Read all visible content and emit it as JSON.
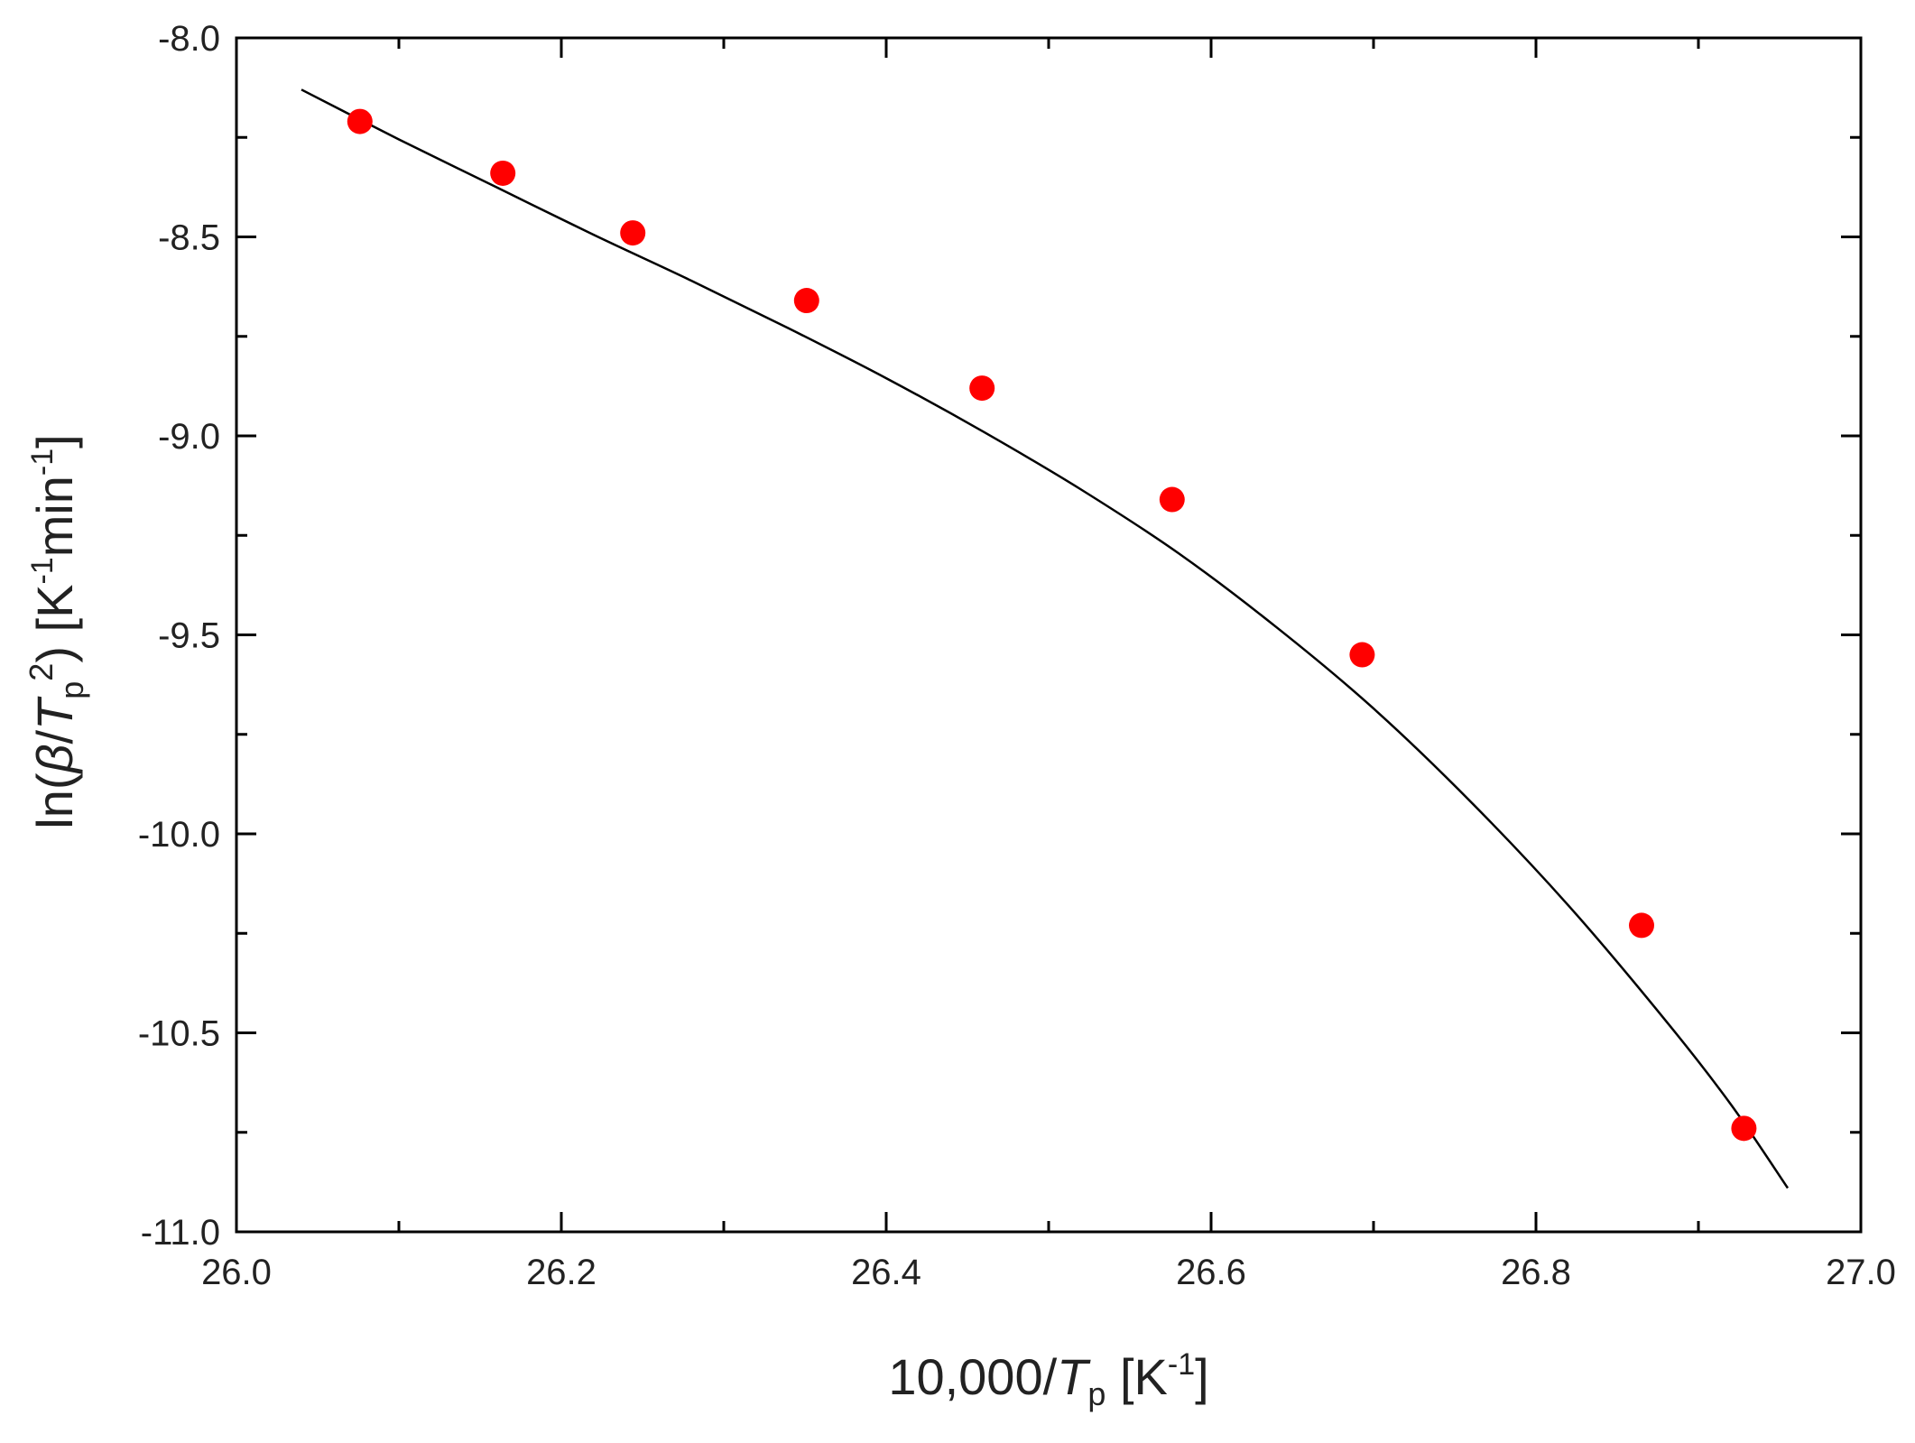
{
  "chart_data": {
    "type": "scatter",
    "xlabel": {
      "prefix": "10,000/",
      "var": "T",
      "sub": "p",
      "unit_open": " [K",
      "unit_sup": "-1",
      "unit_close": "]"
    },
    "ylabel": {
      "prefix": "ln(",
      "beta": "β",
      "slash": "/",
      "var": "T",
      "sub": "p",
      "sup": "2",
      "mid": ") [K",
      "sup2": "-1",
      "min": "min",
      "sup3": "-1",
      "close": "]"
    },
    "xlim": [
      26.0,
      27.0
    ],
    "ylim": [
      -11.0,
      -8.0
    ],
    "x_ticks": [
      26.0,
      26.2,
      26.4,
      26.6,
      26.8,
      27.0
    ],
    "x_tick_labels": [
      "26.0",
      "26.2",
      "26.4",
      "26.6",
      "26.8",
      "27.0"
    ],
    "y_ticks": [
      -8.0,
      -8.5,
      -9.0,
      -9.5,
      -10.0,
      -10.5,
      -11.0
    ],
    "y_tick_labels": [
      "-8.0",
      "-8.5",
      "-9.0",
      "-9.5",
      "-10.0",
      "-10.5",
      "-11.0"
    ],
    "grid": false,
    "marker_color": "#ff0000",
    "line_color": "#000000",
    "points": [
      {
        "x": 26.076,
        "y": -8.21
      },
      {
        "x": 26.164,
        "y": -8.34
      },
      {
        "x": 26.244,
        "y": -8.49
      },
      {
        "x": 26.351,
        "y": -8.66
      },
      {
        "x": 26.459,
        "y": -8.88
      },
      {
        "x": 26.576,
        "y": -9.16
      },
      {
        "x": 26.693,
        "y": -9.55
      },
      {
        "x": 26.865,
        "y": -10.23
      },
      {
        "x": 26.928,
        "y": -10.74
      }
    ],
    "fit_curve": {
      "x": [
        26.04,
        26.1,
        26.16,
        26.22,
        26.28,
        26.34,
        26.4,
        26.46,
        26.52,
        26.58,
        26.64,
        26.7,
        26.76,
        26.82,
        26.88,
        26.92,
        26.955
      ],
      "y": [
        -8.13,
        -8.255,
        -8.375,
        -8.495,
        -8.61,
        -8.73,
        -8.855,
        -8.99,
        -9.135,
        -9.295,
        -9.48,
        -9.685,
        -9.92,
        -10.18,
        -10.47,
        -10.68,
        -10.89
      ]
    }
  }
}
